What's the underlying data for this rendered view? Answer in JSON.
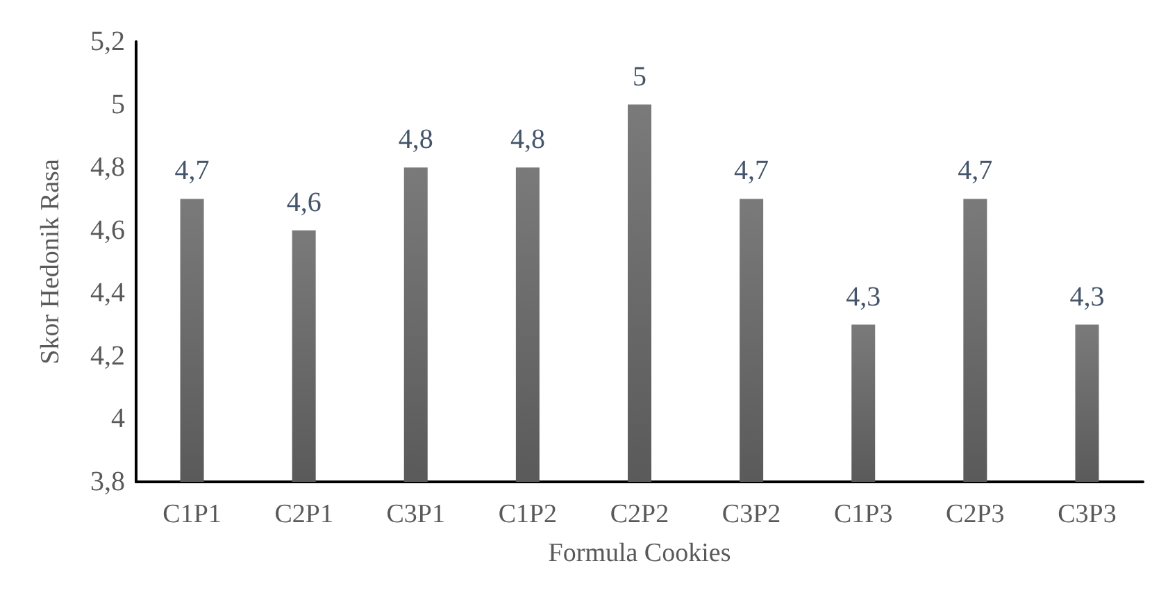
{
  "chart_data": {
    "type": "bar",
    "xlabel": "Formula Cookies",
    "ylabel": "Skor Hedonik Rasa",
    "categories": [
      "C1P1",
      "C2P1",
      "C3P1",
      "C1P2",
      "C2P2",
      "C3P2",
      "C1P3",
      "C2P3",
      "C3P3"
    ],
    "values": [
      4.7,
      4.6,
      4.8,
      4.8,
      5,
      4.7,
      4.3,
      4.7,
      4.3
    ],
    "value_labels": [
      "4,7",
      "4,6",
      "4,8",
      "4,8",
      "5",
      "4,7",
      "4,3",
      "4,7",
      "4,3"
    ],
    "color": "#5a5a5a",
    "ylim": [
      3.8,
      5.2
    ],
    "yticks": [
      {
        "value": 3.8,
        "label": "3,8"
      },
      4,
      {
        "value": 4.2,
        "label": "4,2"
      },
      {
        "value": 4.4,
        "label": "4,4"
      },
      {
        "value": 4.6,
        "label": "4,6"
      },
      {
        "value": 4.8,
        "label": "4,8"
      },
      5,
      {
        "value": 5.2,
        "label": "5,2"
      }
    ],
    "grid": false
  }
}
